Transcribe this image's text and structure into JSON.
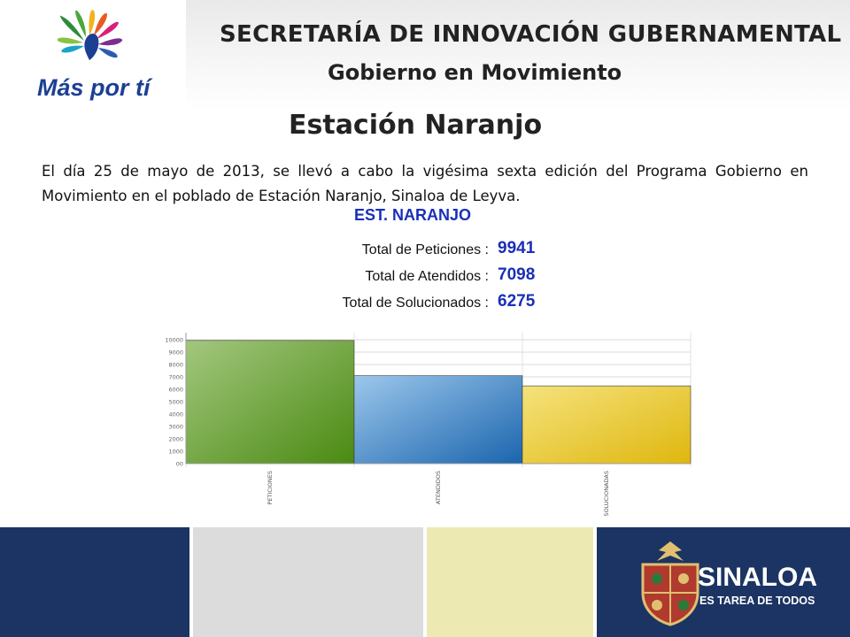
{
  "header": {
    "logo_text": "Más por tí",
    "title": "SECRETARÍA DE INNOVACIÓN GUBERNAMENTAL",
    "subtitle": "Gobierno en Movimiento"
  },
  "main": {
    "title": "Estación Naranjo",
    "intro": "El día 25 de mayo de 2013, se llevó a cabo la vigésima sexta edición del Programa Gobierno en Movimiento en el poblado de Estación Naranjo, Sinaloa de Leyva."
  },
  "summary": {
    "heading": "EST. NARANJO",
    "rows": [
      {
        "label": "Total de Peticiones :",
        "value": "9941"
      },
      {
        "label": "Total de Atendidos :",
        "value": "7098"
      },
      {
        "label": "Total de Solucionados :",
        "value": "6275"
      }
    ]
  },
  "chart_data": {
    "type": "bar",
    "categories": [
      "PETICIONES",
      "ATENDIDOS",
      "SOLUCIONADAS"
    ],
    "values": [
      9941,
      7098,
      6275
    ],
    "ylim": [
      0,
      10000
    ],
    "yticks": [
      "00",
      "1000",
      "2000",
      "3000",
      "4000",
      "5000",
      "6000",
      "7000",
      "8000",
      "9000",
      "10000"
    ],
    "grid": true,
    "colors": [
      "#5e9a2e",
      "#2f7bc2",
      "#e5c227"
    ]
  },
  "footer": {
    "brand": "SINALOA",
    "tagline": "ES TAREA DE TODOS",
    "colors": [
      "#1c3463",
      "#dcdcdc",
      "#ede9b3",
      "#1c3463"
    ]
  }
}
